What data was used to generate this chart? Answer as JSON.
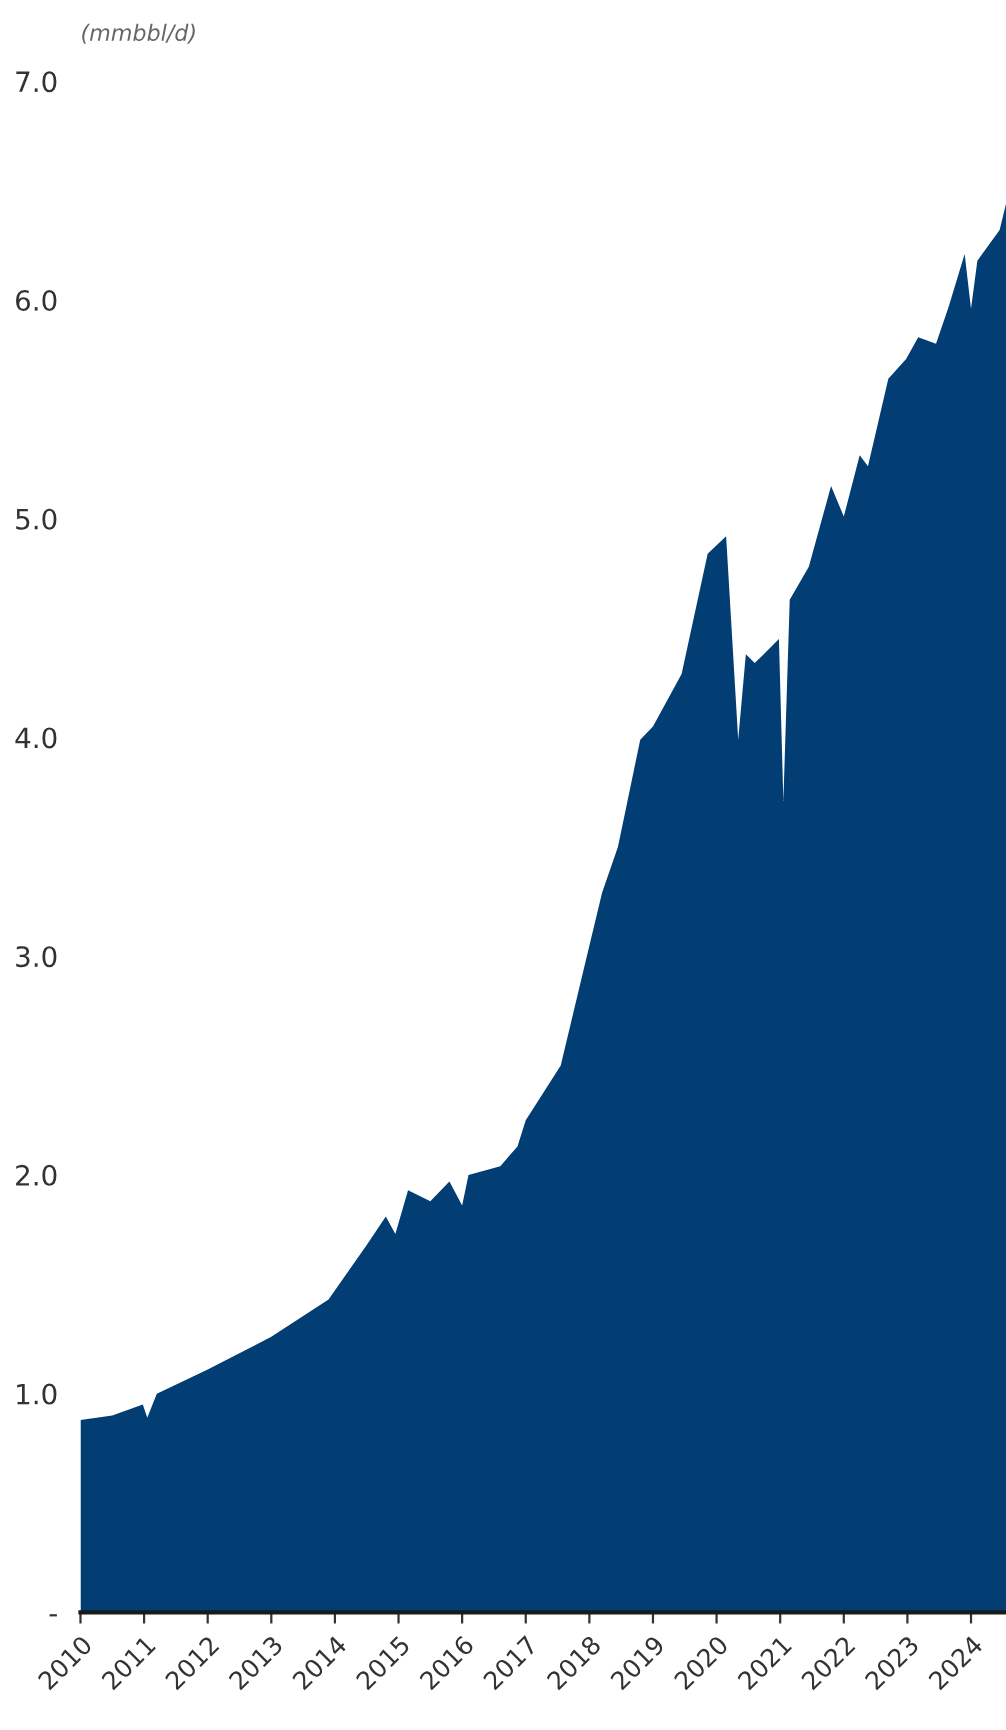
{
  "chart_data": {
    "type": "area",
    "subtitle": "(mmbbl/d)",
    "x": [
      2010.0,
      2010.5,
      2010.98,
      2011.05,
      2011.2,
      2012.0,
      2013.0,
      2013.9,
      2014.5,
      2014.8,
      2014.95,
      2015.15,
      2015.5,
      2015.8,
      2016.0,
      2016.1,
      2016.6,
      2016.87,
      2017.0,
      2017.55,
      2017.87,
      2018.2,
      2018.45,
      2018.8,
      2019.0,
      2019.45,
      2019.86,
      2020.15,
      2020.34,
      2020.46,
      2020.6,
      2020.98,
      2021.05,
      2021.15,
      2021.45,
      2021.8,
      2022.0,
      2022.25,
      2022.38,
      2022.7,
      2022.98,
      2023.17,
      2023.45,
      2023.65,
      2023.9,
      2024.0,
      2024.1,
      2024.45,
      2024.55
    ],
    "series": [
      {
        "color": "#023d73",
        "values": [
          0.88,
          0.9,
          0.95,
          0.89,
          1.0,
          1.11,
          1.26,
          1.43,
          1.68,
          1.81,
          1.73,
          1.93,
          1.88,
          1.97,
          1.86,
          2.0,
          2.04,
          2.13,
          2.25,
          2.5,
          2.89,
          3.29,
          3.5,
          3.99,
          4.05,
          4.29,
          4.84,
          4.92,
          3.99,
          4.38,
          4.34,
          4.45,
          3.71,
          4.63,
          4.78,
          5.15,
          5.01,
          5.29,
          5.24,
          5.64,
          5.73,
          5.83,
          5.8,
          5.97,
          6.21,
          5.96,
          6.18,
          6.32,
          6.44
        ]
      }
    ],
    "xlim": [
      2010.0,
      2024.55
    ],
    "xticks": [
      2010,
      2011,
      2012,
      2013,
      2014,
      2015,
      2016,
      2017,
      2018,
      2019,
      2020,
      2021,
      2022,
      2023,
      2024
    ],
    "ylim": [
      0,
      7
    ],
    "yticks": [
      {
        "value": 0,
        "label": "-"
      },
      {
        "value": 1,
        "label": "1.0"
      },
      {
        "value": 2,
        "label": "2.0"
      },
      {
        "value": 3,
        "label": "3.0"
      },
      {
        "value": 4,
        "label": "4.0"
      },
      {
        "value": 5,
        "label": "5.0"
      },
      {
        "value": 6,
        "label": "6.0"
      },
      {
        "value": 7,
        "label": "7.0"
      }
    ],
    "grid": false,
    "legend": false
  }
}
